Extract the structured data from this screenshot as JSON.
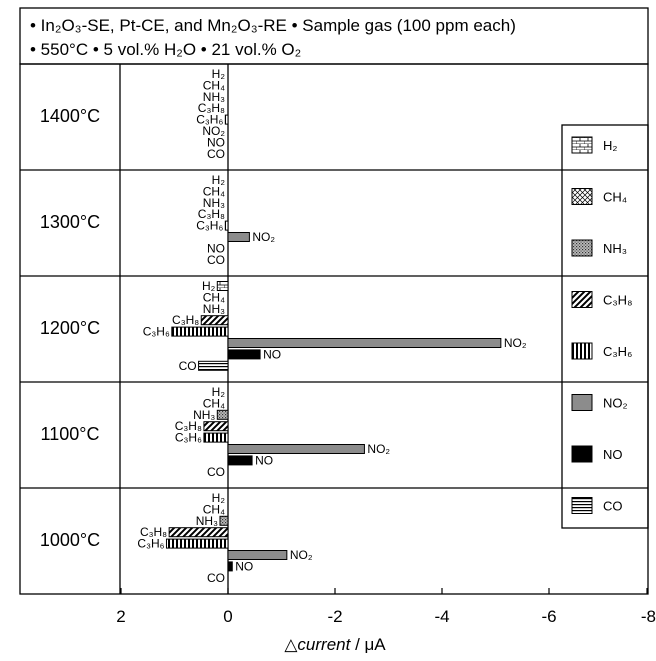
{
  "header": {
    "line1": "• In₂O₃-SE, Pt-CE, and Mn₂O₃-RE  • Sample gas (100 ppm each)",
    "line2": "• 550°C  • 5 vol.% H₂O  • 21 vol.% O₂"
  },
  "xlabel_prefix": "△",
  "xlabel_italic": "current",
  "xlabel_suffix": " / μA",
  "legend_title": "",
  "colors": {
    "axis": "#000000",
    "background": "#ffffff",
    "NO2": "#8c8c8c",
    "NO": "#000000"
  },
  "chart_data": {
    "type": "bar",
    "orientation": "horizontal",
    "xlabel": "△current / μA",
    "xlim": [
      2,
      -8
    ],
    "xticks": [
      2,
      0,
      -2,
      -4,
      -6,
      -8
    ],
    "xtick_labels": [
      "2",
      "0",
      "-2",
      "-4",
      "-6",
      "-8"
    ],
    "gases": [
      "H₂",
      "CH₄",
      "NH₃",
      "C₃H₈",
      "C₃H₆",
      "NO₂",
      "NO",
      "CO"
    ],
    "gas_patterns": {
      "H₂": "brick",
      "CH₄": "crosshatch",
      "NH₃": "stipple",
      "C₃H₈": "diagonal",
      "C₃H₆": "vertical",
      "NO₂": "gray",
      "NO": "black",
      "CO": "horizontal"
    },
    "panels": [
      {
        "label": "1400°C",
        "values": [
          0,
          0,
          0,
          0,
          0.05,
          0,
          0,
          0
        ]
      },
      {
        "label": "1300°C",
        "values": [
          0,
          0,
          0,
          0,
          0.05,
          -0.4,
          0,
          0
        ]
      },
      {
        "label": "1200°C",
        "values": [
          0.2,
          0,
          0,
          0.5,
          1.05,
          -5.1,
          -0.6,
          0.55
        ]
      },
      {
        "label": "1100°C",
        "values": [
          0,
          0,
          0.2,
          0.45,
          0.45,
          -2.55,
          -0.45,
          0
        ]
      },
      {
        "label": "1000°C",
        "values": [
          0,
          0,
          0.15,
          1.1,
          1.15,
          -1.1,
          -0.08,
          0
        ]
      }
    ]
  }
}
